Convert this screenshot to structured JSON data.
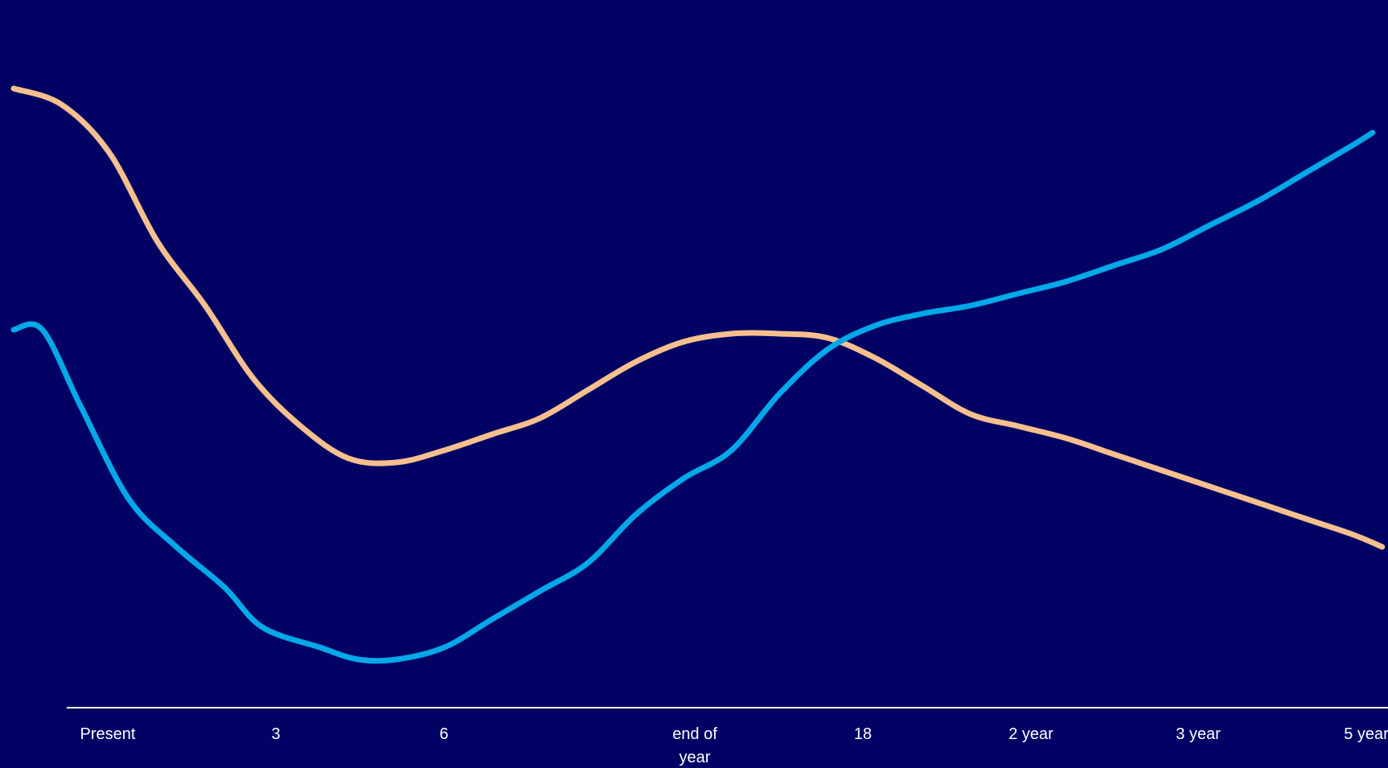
{
  "chart_data": {
    "type": "line",
    "title": "",
    "xlabel": "",
    "ylabel": "",
    "background_color": "#020264",
    "axis_color": "#ffffff",
    "grid": false,
    "legend": "none",
    "x_tick_labels": [
      {
        "text": "Present"
      },
      {
        "text": "3"
      },
      {
        "text": "6"
      },
      {
        "text": [
          "end of",
          "year"
        ]
      },
      {
        "text": "18"
      },
      {
        "text": "2 year"
      },
      {
        "text": "3 year"
      },
      {
        "text": "5 year"
      }
    ],
    "series": [
      {
        "color": "#f6c08e",
        "points": [
          [
            0.0,
            7.7
          ],
          [
            0.25,
            7.5
          ],
          [
            0.5,
            6.9
          ],
          [
            0.75,
            5.8
          ],
          [
            1.0,
            5.0
          ],
          [
            1.25,
            4.1
          ],
          [
            1.5,
            3.5
          ],
          [
            1.75,
            3.1
          ],
          [
            2.0,
            3.05
          ],
          [
            2.25,
            3.2
          ],
          [
            2.5,
            3.4
          ],
          [
            2.75,
            3.6
          ],
          [
            3.0,
            3.95
          ],
          [
            3.25,
            4.3
          ],
          [
            3.5,
            4.55
          ],
          [
            3.75,
            4.65
          ],
          [
            4.0,
            4.65
          ],
          [
            4.25,
            4.6
          ],
          [
            4.5,
            4.35
          ],
          [
            4.75,
            4.0
          ],
          [
            5.0,
            3.65
          ],
          [
            5.25,
            3.5
          ],
          [
            5.5,
            3.35
          ],
          [
            5.75,
            3.15
          ],
          [
            6.0,
            2.95
          ],
          [
            6.25,
            2.75
          ],
          [
            6.5,
            2.55
          ],
          [
            6.75,
            2.35
          ],
          [
            7.0,
            2.15
          ],
          [
            7.15,
            2.0
          ]
        ]
      },
      {
        "color": "#02a8e8",
        "points": [
          [
            0.0,
            4.7
          ],
          [
            0.15,
            4.7
          ],
          [
            0.35,
            3.75
          ],
          [
            0.6,
            2.6
          ],
          [
            0.85,
            2.0
          ],
          [
            1.1,
            1.5
          ],
          [
            1.3,
            1.0
          ],
          [
            1.6,
            0.75
          ],
          [
            1.8,
            0.6
          ],
          [
            2.0,
            0.6
          ],
          [
            2.25,
            0.75
          ],
          [
            2.5,
            1.1
          ],
          [
            2.75,
            1.45
          ],
          [
            3.0,
            1.8
          ],
          [
            3.25,
            2.4
          ],
          [
            3.5,
            2.85
          ],
          [
            3.75,
            3.2
          ],
          [
            4.0,
            3.9
          ],
          [
            4.25,
            4.45
          ],
          [
            4.5,
            4.75
          ],
          [
            4.75,
            4.9
          ],
          [
            5.0,
            5.0
          ],
          [
            5.25,
            5.15
          ],
          [
            5.5,
            5.3
          ],
          [
            5.75,
            5.5
          ],
          [
            6.0,
            5.7
          ],
          [
            6.25,
            6.0
          ],
          [
            6.5,
            6.3
          ],
          [
            6.75,
            6.65
          ],
          [
            7.0,
            7.0
          ],
          [
            7.1,
            7.15
          ]
        ]
      }
    ]
  }
}
